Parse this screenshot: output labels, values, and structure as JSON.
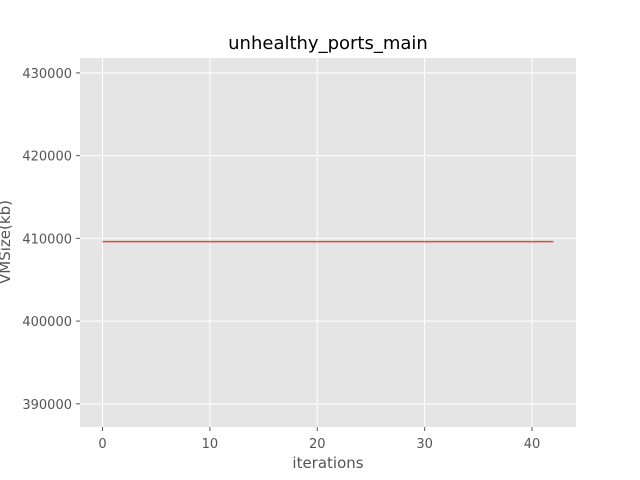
{
  "chart_data": {
    "type": "line",
    "title": "unhealthy_ports_main",
    "xlabel": "iterations",
    "ylabel": "VMSize(kb)",
    "xlim": [
      -2.1,
      44.1
    ],
    "ylim": [
      387200,
      431800
    ],
    "xticks": [
      0,
      10,
      20,
      30,
      40
    ],
    "yticks": [
      390000,
      400000,
      410000,
      420000,
      430000
    ],
    "grid": true,
    "series": [
      {
        "x": [
          0,
          42
        ],
        "y": [
          409600,
          409600
        ],
        "color": "#e24a33"
      }
    ],
    "background_color": "#e5e5e5"
  }
}
